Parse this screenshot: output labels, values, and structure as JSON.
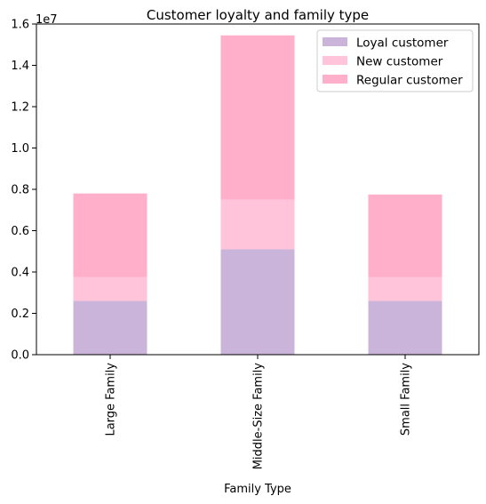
{
  "chart_data": {
    "type": "bar",
    "stacked": true,
    "title": "Customer loyalty and family type",
    "xlabel": "Family Type",
    "ylabel": "",
    "categories": [
      "Large Family",
      "Middle-Size Family",
      "Small Family"
    ],
    "series": [
      {
        "name": "Loyal customer",
        "color": "#cbb4da",
        "values": [
          2600000,
          5100000,
          2600000
        ]
      },
      {
        "name": "New customer",
        "color": "#ffc3da",
        "values": [
          1150000,
          2400000,
          1150000
        ]
      },
      {
        "name": "Regular customer",
        "color": "#ffafca",
        "values": [
          4050000,
          7950000,
          4000000
        ]
      }
    ],
    "ylim": [
      0,
      16000000
    ],
    "yticks": [
      0,
      2000000,
      4000000,
      6000000,
      8000000,
      10000000,
      12000000,
      14000000,
      16000000
    ],
    "ytick_labels": [
      "0.0",
      "0.2",
      "0.4",
      "0.6",
      "0.8",
      "1.0",
      "1.2",
      "1.4",
      "1.6"
    ],
    "offset_label": "1e7",
    "legend_position": "upper right",
    "grid": false
  }
}
